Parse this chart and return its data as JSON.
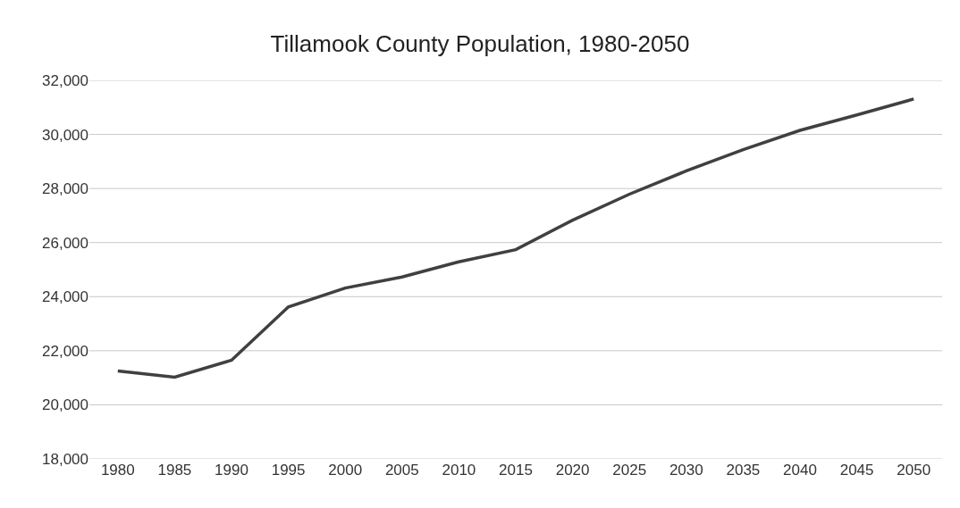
{
  "chart_data": {
    "type": "line",
    "title": "Tillamook County Population, 1980-2050",
    "categories": [
      "1980",
      "1985",
      "1990",
      "1995",
      "2000",
      "2005",
      "2010",
      "2015",
      "2020",
      "2025",
      "2030",
      "2035",
      "2040",
      "2045",
      "2050"
    ],
    "series": [
      {
        "color": "#404040",
        "values": [
          21250,
          21020,
          21650,
          23620,
          24320,
          24730,
          25290,
          25740,
          26830,
          27790,
          28650,
          29440,
          30150,
          30720,
          31310
        ]
      }
    ],
    "ylim": [
      18000,
      32000
    ],
    "yticks": [
      {
        "value": 18000,
        "label": "18,000"
      },
      {
        "value": 20000,
        "label": "20,000"
      },
      {
        "value": 22000,
        "label": "22,000"
      },
      {
        "value": 24000,
        "label": "24,000"
      },
      {
        "value": 26000,
        "label": "26,000"
      },
      {
        "value": 28000,
        "label": "28,000"
      },
      {
        "value": 30000,
        "label": "30,000"
      },
      {
        "value": 32000,
        "label": "32,000"
      }
    ],
    "grid": "y",
    "marker": "none",
    "line_style": "solid"
  }
}
